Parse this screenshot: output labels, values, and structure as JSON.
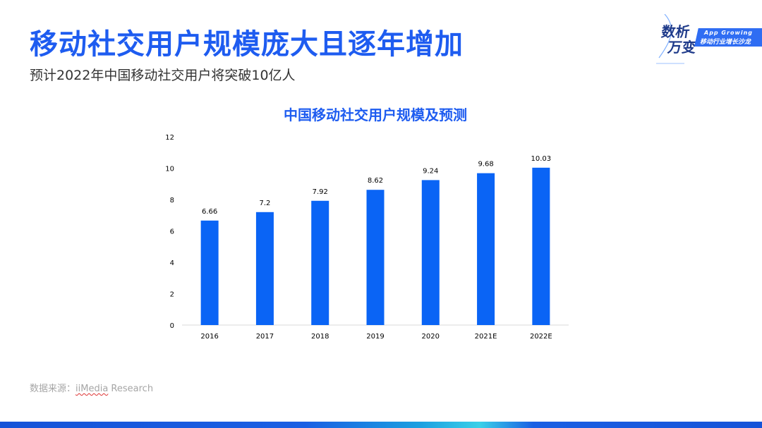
{
  "page": {
    "title": "移动社交用户规模庞大且逐年增加",
    "subtitle": "预计2022年中国移动社交用户将突破10亿人"
  },
  "logo": {
    "glyph_top": "数析",
    "glyph_bottom": "万变",
    "en": "App Growing",
    "cn": "移动行业增长沙龙",
    "brand_color": "#2f6df3"
  },
  "chart_data": {
    "type": "bar",
    "title": "中国移动社交用户规模及预测",
    "categories": [
      "2016",
      "2017",
      "2018",
      "2019",
      "2020",
      "2021E",
      "2022E"
    ],
    "values": [
      6.66,
      7.2,
      7.92,
      8.62,
      9.24,
      9.68,
      10.03
    ],
    "value_labels": [
      "6.66",
      "7.2",
      "7.92",
      "8.62",
      "9.24",
      "9.68",
      "10.03"
    ],
    "xlabel": "",
    "ylabel": "",
    "ylim": [
      0,
      12
    ],
    "yticks": [
      "0",
      "2",
      "4",
      "6",
      "8",
      "10",
      "12"
    ],
    "grid": false,
    "legend": "none",
    "bar_color": "#0a64f5",
    "title_color": "#1e5cf0"
  },
  "source": {
    "label": "数据来源：",
    "ref": "iiMedia",
    "rest": " Research"
  },
  "colors": {
    "accent": "#1e5cf0",
    "bottom_bar": "#1553d8"
  }
}
